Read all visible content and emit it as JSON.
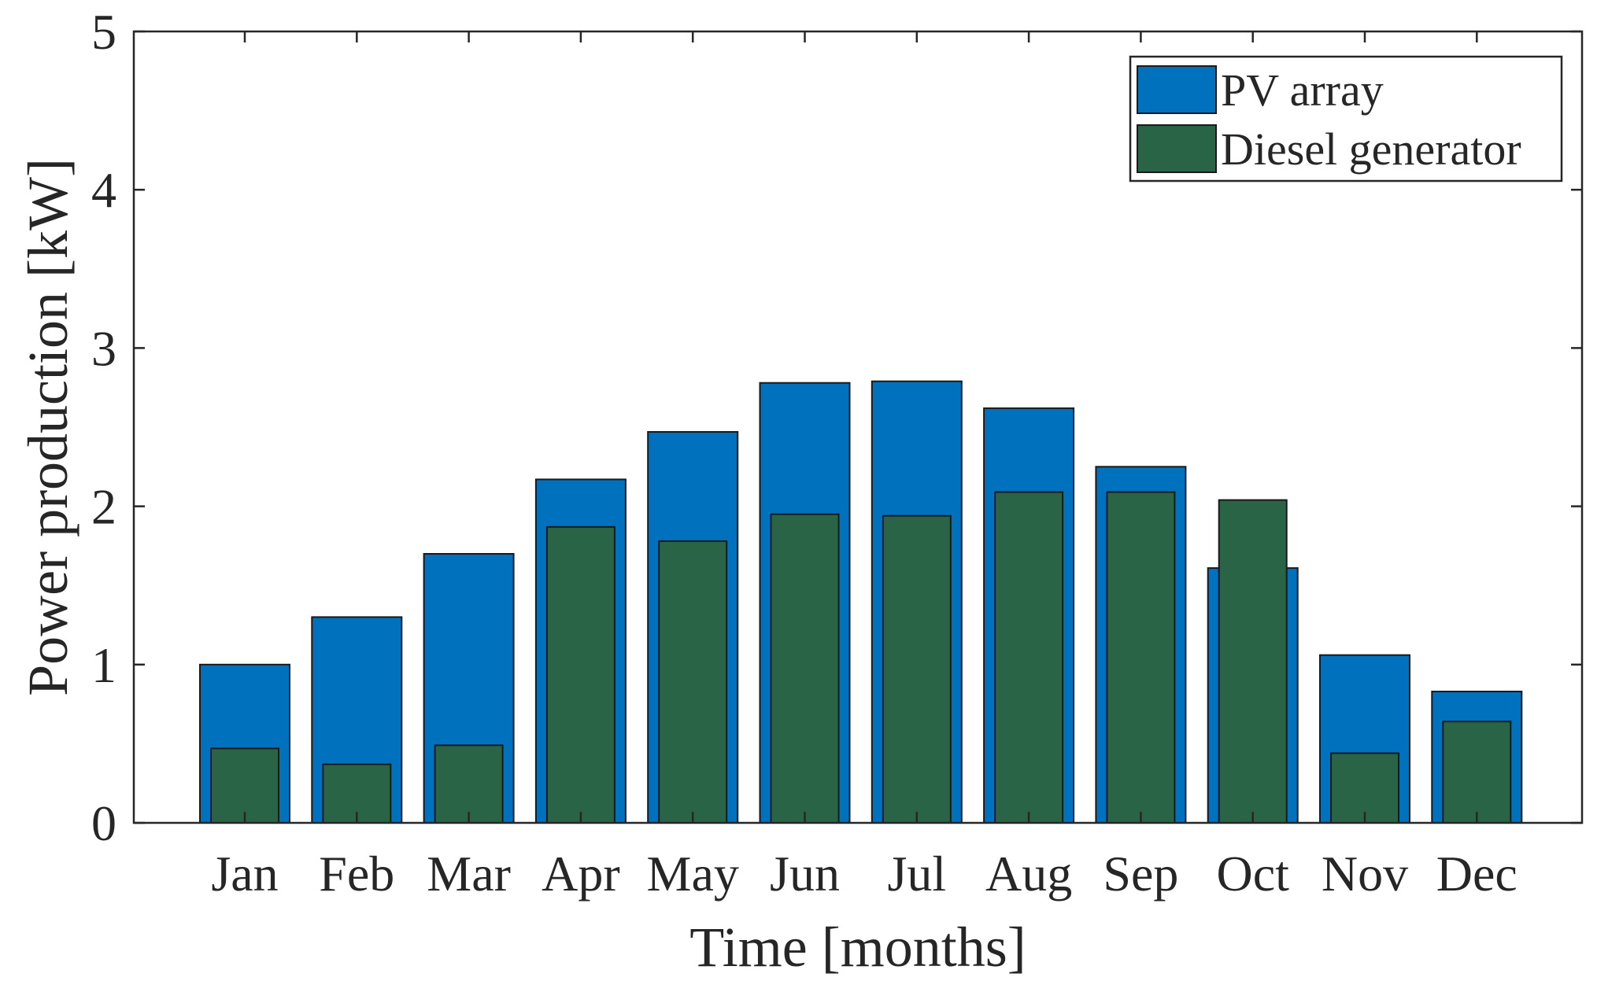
{
  "chart_data": {
    "type": "bar",
    "title": "",
    "xlabel": "Time [months]",
    "ylabel": "Power production [kW]",
    "ylim": [
      0,
      5
    ],
    "yticks": [
      0,
      1,
      2,
      3,
      4,
      5
    ],
    "grid": false,
    "legend_position": "top-right",
    "categories": [
      "Jan",
      "Feb",
      "Mar",
      "Apr",
      "May",
      "Jun",
      "Jul",
      "Aug",
      "Sep",
      "Oct",
      "Nov",
      "Dec"
    ],
    "series": [
      {
        "name": "PV array",
        "color": "#0072BD",
        "values": [
          1.0,
          1.3,
          1.7,
          2.17,
          2.47,
          2.78,
          2.79,
          2.62,
          2.25,
          1.61,
          1.06,
          0.83
        ]
      },
      {
        "name": "Diesel generator",
        "color": "#2A6446",
        "values": [
          0.47,
          0.37,
          0.49,
          1.87,
          1.78,
          1.95,
          1.94,
          2.09,
          2.09,
          2.04,
          0.44,
          0.64
        ]
      }
    ]
  }
}
